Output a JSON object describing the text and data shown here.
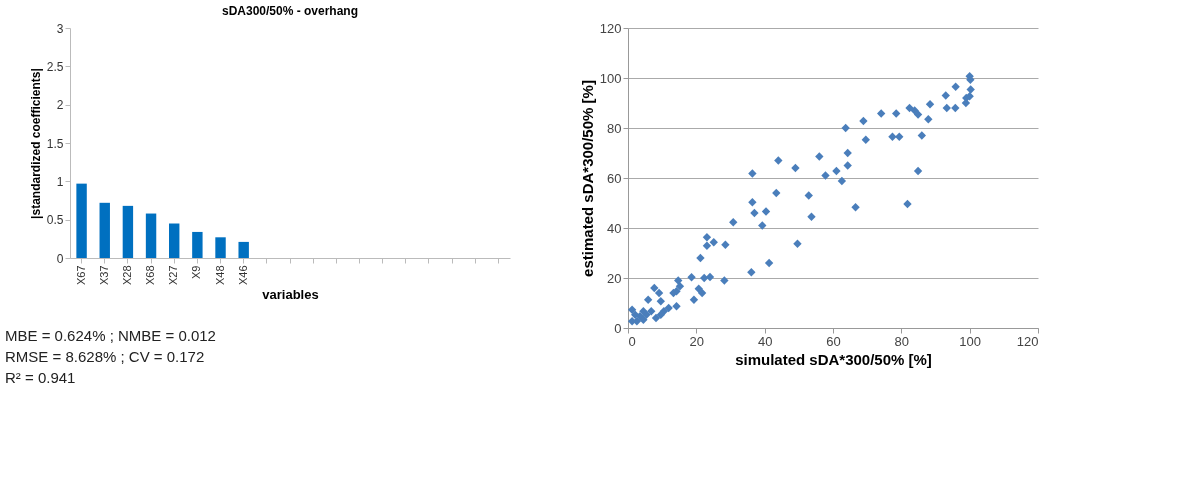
{
  "chart_data": [
    {
      "type": "bar",
      "title": "sDA300/50% - overhang",
      "xlabel": "variables",
      "ylabel": "|standardized coefficients|",
      "categories": [
        "X67",
        "X37",
        "X28",
        "X68",
        "X27",
        "X9",
        "X48",
        "X46",
        null,
        null,
        null,
        null,
        null,
        null,
        null,
        null,
        null,
        null,
        null
      ],
      "values": [
        0.97,
        0.72,
        0.68,
        0.58,
        0.45,
        0.34,
        0.27,
        0.21,
        null,
        null,
        null,
        null,
        null,
        null,
        null,
        null,
        null,
        null,
        null
      ],
      "color": "#0070c0",
      "ylim": [
        0,
        3
      ],
      "yticks": [
        0,
        0.5,
        1,
        1.5,
        2,
        2.5,
        3
      ],
      "grid": false,
      "annotations": [
        "MBE = 0.624%   ; NMBE = 0.012",
        "RMSE = 8.628% ; CV = 0.172",
        "R² = 0.941"
      ]
    },
    {
      "type": "scatter",
      "xlabel": "simulated sDA*300/50% [%]",
      "ylabel": "estimated sDA*300/50% [%]",
      "color": "#4a7ebb",
      "marker": "diamond",
      "xlim": [
        0,
        120
      ],
      "ylim": [
        0,
        120
      ],
      "xticks": [
        0,
        20,
        40,
        60,
        80,
        100,
        120
      ],
      "yticks": [
        0,
        20,
        40,
        60,
        80,
        100,
        120
      ],
      "grid": "y",
      "x": [
        36.4,
        36.4,
        37,
        40.4,
        39.3,
        30.8,
        44,
        43.4,
        49,
        56,
        57.8,
        52.9,
        53.7,
        61,
        62.6,
        63.7,
        64.3,
        64.3,
        66.6,
        68.9,
        69.6,
        74.1,
        78.5,
        77.4,
        79.4,
        81.8,
        82.4,
        83.9,
        84.9,
        86,
        84.9,
        87.9,
        88.4,
        93,
        93.3,
        95.9,
        95.8,
        98.9,
        99,
        100,
        100.2,
        100.3,
        100,
        36.1,
        41.3,
        49.6,
        28.5,
        28.2,
        24,
        22.3,
        21.2,
        23.1,
        23.1,
        25.1,
        20.7,
        21.7,
        19.3,
        18.6,
        14.7,
        15.2,
        14.2,
        13.3,
        14.2,
        11.9,
        10.5,
        9.6,
        8.2,
        7.7,
        9.1,
        9.6,
        5.9,
        4.5,
        3.5,
        2.6,
        1.2,
        1.2,
        2.1,
        4.5,
        5.4,
        6.8
      ],
      "values": [
        61.8,
        50.3,
        46,
        46.6,
        41,
        42.3,
        67,
        54,
        64,
        68.6,
        61,
        53,
        44.5,
        62.8,
        58.8,
        80,
        70,
        65,
        48.3,
        82.8,
        75.3,
        85.8,
        85.8,
        76.5,
        76.5,
        49.6,
        88,
        87,
        85.4,
        77,
        62.8,
        83.5,
        89.5,
        93,
        88,
        96.5,
        88,
        90,
        92,
        100.7,
        99.3,
        95.4,
        92.7,
        22.3,
        26,
        33.7,
        33.3,
        19,
        20.4,
        20,
        28,
        36.3,
        32.9,
        34.3,
        15.7,
        14,
        11.3,
        20.3,
        19,
        16.7,
        14.7,
        14,
        8.7,
        8,
        6.7,
        5.3,
        4,
        16,
        14,
        10.7,
        11.3,
        6.7,
        4.7,
        2.7,
        2.7,
        7.3,
        5.3,
        3.3,
        5.3,
        6.7
      ]
    }
  ]
}
